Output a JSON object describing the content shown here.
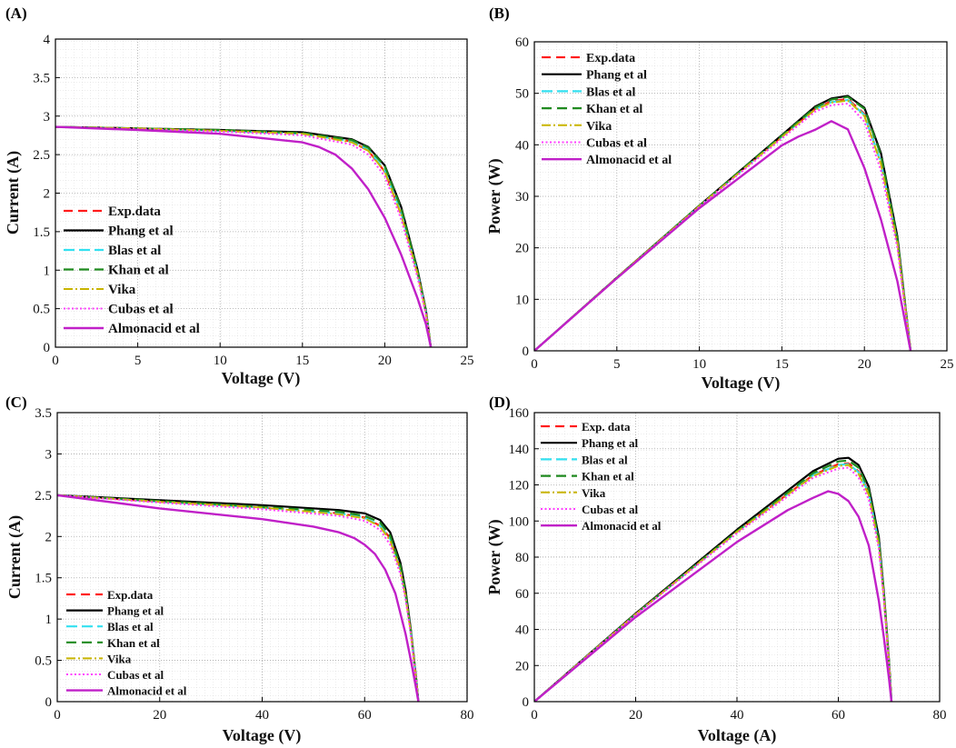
{
  "colors": {
    "exp": "#ff1a1a",
    "phang": "#000000",
    "blas": "#33e0f0",
    "khan": "#1f8a1f",
    "vika": "#c8b400",
    "cubas": "#ff40ff",
    "almonacid": "#c020c8"
  },
  "chart_data": [
    {
      "panel_label": "(A)",
      "type": "line",
      "xlabel": "Voltage (V)",
      "ylabel": "Current (A)",
      "xlim": [
        0,
        25
      ],
      "ylim": [
        0,
        4
      ],
      "xticks": [
        "0",
        "5",
        "10",
        "15",
        "20",
        "25"
      ],
      "yticks": [
        "0",
        "0.5",
        "1",
        "1.5",
        "2",
        "2.5",
        "3",
        "3.5",
        "4"
      ],
      "grid": true,
      "legend_position": "lower-left",
      "series": [
        {
          "key": "exp",
          "name": "Exp.data",
          "x": [
            0,
            5,
            10,
            15,
            18,
            19,
            20,
            21,
            22,
            22.5,
            22.8
          ],
          "y": [
            2.86,
            2.84,
            2.81,
            2.77,
            2.67,
            2.55,
            2.28,
            1.72,
            0.95,
            0.45,
            0
          ]
        },
        {
          "key": "phang",
          "name": "Phang et al",
          "x": [
            0,
            5,
            10,
            15,
            18,
            19,
            20,
            21,
            22,
            22.5,
            22.8
          ],
          "y": [
            2.86,
            2.84,
            2.82,
            2.79,
            2.7,
            2.6,
            2.36,
            1.82,
            1.0,
            0.48,
            0
          ]
        },
        {
          "key": "blas",
          "name": "Blas et al",
          "x": [
            0,
            5,
            10,
            15,
            18,
            19,
            20,
            21,
            22,
            22.5,
            22.8
          ],
          "y": [
            2.86,
            2.84,
            2.81,
            2.77,
            2.67,
            2.56,
            2.3,
            1.75,
            0.96,
            0.46,
            0
          ]
        },
        {
          "key": "khan",
          "name": "Khan et al",
          "x": [
            0,
            5,
            10,
            15,
            18,
            19,
            20,
            21,
            22,
            22.5,
            22.8
          ],
          "y": [
            2.86,
            2.84,
            2.82,
            2.78,
            2.69,
            2.59,
            2.35,
            1.8,
            0.98,
            0.47,
            0
          ]
        },
        {
          "key": "vika",
          "name": "Vika",
          "x": [
            0,
            5,
            10,
            15,
            18,
            19,
            20,
            21,
            22,
            22.5,
            22.8
          ],
          "y": [
            2.86,
            2.84,
            2.81,
            2.77,
            2.66,
            2.55,
            2.28,
            1.72,
            0.94,
            0.45,
            0
          ]
        },
        {
          "key": "cubas",
          "name": "Cubas et al",
          "x": [
            0,
            5,
            10,
            15,
            18,
            19,
            20,
            21,
            22,
            22.5,
            22.8
          ],
          "y": [
            2.86,
            2.83,
            2.8,
            2.75,
            2.63,
            2.5,
            2.22,
            1.66,
            0.9,
            0.43,
            0
          ]
        },
        {
          "key": "almonacid",
          "name": "Almonacid et al",
          "x": [
            0,
            5,
            10,
            15,
            16,
            17,
            18,
            19,
            20,
            21,
            22,
            22.5,
            22.8
          ],
          "y": [
            2.86,
            2.82,
            2.77,
            2.66,
            2.6,
            2.5,
            2.32,
            2.05,
            1.68,
            1.2,
            0.63,
            0.3,
            0
          ]
        }
      ]
    },
    {
      "panel_label": "(B)",
      "type": "line",
      "xlabel": "Voltage (V)",
      "ylabel": "Power (W)",
      "xlim": [
        0,
        25
      ],
      "ylim": [
        0,
        60
      ],
      "xticks": [
        "0",
        "5",
        "10",
        "15",
        "20",
        "25"
      ],
      "yticks": [
        "0",
        "10",
        "20",
        "30",
        "40",
        "50",
        "60"
      ],
      "grid": true,
      "legend_position": "top-left",
      "series": [
        {
          "key": "exp",
          "name": "Exp.data",
          "x": [
            0,
            5,
            10,
            15,
            17,
            18,
            19,
            20,
            21,
            22,
            22.8
          ],
          "y": [
            0,
            14.2,
            28.1,
            41.6,
            46.9,
            48.5,
            48.9,
            46.0,
            36.5,
            21.0,
            0
          ]
        },
        {
          "key": "phang",
          "name": "Phang et al",
          "x": [
            0,
            5,
            10,
            15,
            17,
            18,
            19,
            20,
            21,
            22,
            22.8
          ],
          "y": [
            0,
            14.2,
            28.2,
            41.9,
            47.4,
            49.0,
            49.5,
            47.2,
            38.4,
            22.2,
            0
          ]
        },
        {
          "key": "blas",
          "name": "Blas et al",
          "x": [
            0,
            5,
            10,
            15,
            17,
            18,
            19,
            20,
            21,
            22,
            22.8
          ],
          "y": [
            0,
            14.2,
            28.1,
            41.6,
            46.9,
            48.3,
            48.7,
            45.8,
            36.6,
            21.2,
            0
          ]
        },
        {
          "key": "khan",
          "name": "Khan et al",
          "x": [
            0,
            5,
            10,
            15,
            17,
            18,
            19,
            20,
            21,
            22,
            22.8
          ],
          "y": [
            0,
            14.2,
            28.2,
            41.8,
            47.2,
            48.8,
            49.3,
            47.0,
            38.0,
            21.8,
            0
          ]
        },
        {
          "key": "vika",
          "name": "Vika",
          "x": [
            0,
            5,
            10,
            15,
            17,
            18,
            19,
            20,
            21,
            22,
            22.8
          ],
          "y": [
            0,
            14.2,
            28.1,
            41.5,
            46.8,
            48.2,
            48.6,
            45.6,
            36.3,
            21.0,
            0
          ]
        },
        {
          "key": "cubas",
          "name": "Cubas et al",
          "x": [
            0,
            5,
            10,
            15,
            17,
            18,
            19,
            20,
            21,
            22,
            22.8
          ],
          "y": [
            0,
            14.1,
            28.0,
            41.2,
            46.4,
            47.7,
            48.0,
            44.5,
            35.0,
            20.0,
            0
          ]
        },
        {
          "key": "almonacid",
          "name": "Almonacid et al",
          "x": [
            0,
            5,
            10,
            15,
            16,
            17,
            18,
            19,
            20,
            21,
            22,
            22.8
          ],
          "y": [
            0,
            14.1,
            27.7,
            39.9,
            41.6,
            42.9,
            44.6,
            43.0,
            35.5,
            25.5,
            13.5,
            0
          ]
        }
      ]
    },
    {
      "panel_label": "(C)",
      "type": "line",
      "xlabel": "Voltage (V)",
      "ylabel": "Current (A)",
      "xlim": [
        0,
        80
      ],
      "ylim": [
        0,
        3.5
      ],
      "xticks": [
        "0",
        "20",
        "40",
        "60",
        "80"
      ],
      "yticks": [
        "0",
        "0.5",
        "1",
        "1.5",
        "2",
        "2.5",
        "3",
        "3.5"
      ],
      "grid": true,
      "legend_position": "lower-left",
      "series": [
        {
          "key": "exp",
          "name": "Exp.data",
          "x": [
            0,
            20,
            40,
            55,
            60,
            63,
            65,
            67,
            68,
            69,
            70,
            70.5
          ],
          "y": [
            2.5,
            2.42,
            2.35,
            2.28,
            2.23,
            2.13,
            1.98,
            1.6,
            1.3,
            0.85,
            0.3,
            0
          ]
        },
        {
          "key": "phang",
          "name": "Phang et al",
          "x": [
            0,
            20,
            40,
            55,
            60,
            63,
            65,
            67,
            68,
            69,
            70,
            70.5
          ],
          "y": [
            2.5,
            2.44,
            2.38,
            2.32,
            2.28,
            2.2,
            2.05,
            1.68,
            1.35,
            0.88,
            0.32,
            0
          ]
        },
        {
          "key": "blas",
          "name": "Blas et al",
          "x": [
            0,
            20,
            40,
            55,
            60,
            63,
            65,
            67,
            68,
            69,
            70,
            70.5
          ],
          "y": [
            2.5,
            2.42,
            2.35,
            2.28,
            2.23,
            2.13,
            1.97,
            1.6,
            1.28,
            0.85,
            0.3,
            0
          ]
        },
        {
          "key": "khan",
          "name": "Khan et al",
          "x": [
            0,
            20,
            40,
            55,
            60,
            63,
            65,
            67,
            68,
            69,
            70,
            70.5
          ],
          "y": [
            2.5,
            2.43,
            2.36,
            2.3,
            2.25,
            2.17,
            2.01,
            1.64,
            1.32,
            0.86,
            0.31,
            0
          ]
        },
        {
          "key": "vika",
          "name": "Vika",
          "x": [
            0,
            20,
            40,
            55,
            60,
            63,
            65,
            67,
            68,
            69,
            70,
            70.5
          ],
          "y": [
            2.5,
            2.42,
            2.35,
            2.27,
            2.22,
            2.12,
            1.95,
            1.58,
            1.27,
            0.84,
            0.3,
            0
          ]
        },
        {
          "key": "cubas",
          "name": "Cubas et al",
          "x": [
            0,
            20,
            40,
            55,
            60,
            63,
            65,
            67,
            68,
            69,
            70,
            70.5
          ],
          "y": [
            2.5,
            2.41,
            2.33,
            2.25,
            2.19,
            2.08,
            1.9,
            1.54,
            1.24,
            0.82,
            0.29,
            0
          ]
        },
        {
          "key": "almonacid",
          "name": "Almonacid et al",
          "x": [
            0,
            20,
            40,
            50,
            55,
            58,
            60,
            62,
            64,
            66,
            68,
            69,
            70,
            70.5
          ],
          "y": [
            2.5,
            2.34,
            2.21,
            2.12,
            2.05,
            1.98,
            1.9,
            1.79,
            1.6,
            1.31,
            0.82,
            0.51,
            0.18,
            0
          ]
        }
      ]
    },
    {
      "panel_label": "(D)",
      "type": "line",
      "xlabel": "Voltage (A)",
      "ylabel": "Power (W)",
      "xlim": [
        0,
        80
      ],
      "ylim": [
        0,
        160
      ],
      "xticks": [
        "0",
        "20",
        "40",
        "60",
        "80"
      ],
      "yticks": [
        "0",
        "20",
        "40",
        "60",
        "80",
        "100",
        "120",
        "140",
        "160"
      ],
      "grid": true,
      "legend_position": "top-left",
      "series": [
        {
          "key": "exp",
          "name": "Exp. data",
          "x": [
            0,
            20,
            40,
            55,
            60,
            62,
            64,
            66,
            68,
            69,
            70,
            70.5
          ],
          "y": [
            0,
            48.4,
            94.0,
            125.4,
            131.5,
            132.0,
            127.5,
            116.0,
            88.0,
            58.0,
            21.0,
            0
          ]
        },
        {
          "key": "phang",
          "name": "Phang et al",
          "x": [
            0,
            20,
            40,
            55,
            60,
            62,
            64,
            66,
            68,
            69,
            70,
            70.5
          ],
          "y": [
            0,
            48.8,
            95.2,
            127.6,
            134.5,
            135.0,
            131.0,
            119.0,
            91.0,
            60.5,
            22.5,
            0
          ]
        },
        {
          "key": "blas",
          "name": "Blas et al",
          "x": [
            0,
            20,
            40,
            55,
            60,
            62,
            64,
            66,
            68,
            69,
            70,
            70.5
          ],
          "y": [
            0,
            48.4,
            94.0,
            125.4,
            131.0,
            131.5,
            127.0,
            115.5,
            87.5,
            58.0,
            21.0,
            0
          ]
        },
        {
          "key": "khan",
          "name": "Khan et al",
          "x": [
            0,
            20,
            40,
            55,
            60,
            62,
            64,
            66,
            68,
            69,
            70,
            70.5
          ],
          "y": [
            0,
            48.6,
            94.4,
            126.5,
            133.0,
            133.5,
            129.5,
            117.5,
            89.5,
            59.5,
            21.7,
            0
          ]
        },
        {
          "key": "vika",
          "name": "Vika",
          "x": [
            0,
            20,
            40,
            55,
            60,
            62,
            64,
            66,
            68,
            69,
            70,
            70.5
          ],
          "y": [
            0,
            48.4,
            94.0,
            124.9,
            130.5,
            131.0,
            126.0,
            114.5,
            86.5,
            57.5,
            21.0,
            0
          ]
        },
        {
          "key": "cubas",
          "name": "Cubas et al",
          "x": [
            0,
            20,
            40,
            55,
            60,
            62,
            64,
            66,
            68,
            69,
            70,
            70.5
          ],
          "y": [
            0,
            48.2,
            93.2,
            123.8,
            129.0,
            129.5,
            124.0,
            112.0,
            84.5,
            56.5,
            20.3,
            0
          ]
        },
        {
          "key": "almonacid",
          "name": "Almonacid et al",
          "x": [
            0,
            20,
            40,
            50,
            55,
            58,
            60,
            62,
            64,
            66,
            68,
            69,
            70,
            70.5
          ],
          "y": [
            0,
            46.8,
            88.4,
            106.0,
            112.8,
            116.5,
            115.0,
            111.0,
            102.4,
            86.5,
            55.8,
            35.2,
            12.6,
            0
          ]
        }
      ]
    }
  ]
}
